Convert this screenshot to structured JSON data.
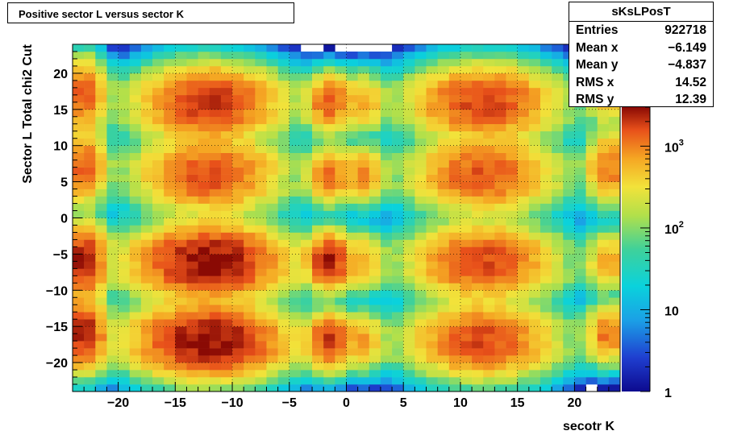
{
  "title": "Positive sector L versus sector K",
  "stats": {
    "name": "sKsLPosT",
    "rows": [
      {
        "label": "Entries",
        "value": "922718"
      },
      {
        "label": "Mean x",
        "value": "−6.149"
      },
      {
        "label": "Mean y",
        "value": "−4.837"
      },
      {
        "label": "RMS x",
        "value": "14.52"
      },
      {
        "label": "RMS y",
        "value": "12.39"
      }
    ]
  },
  "chart_data": {
    "type": "heatmap",
    "title": "Positive sector L versus sector K",
    "xlabel": "secotr K",
    "ylabel": "Sector L  Total chi2 Cut",
    "xlim": [
      -24,
      24
    ],
    "ylim": [
      -24,
      24
    ],
    "x_ticks": [
      -20,
      -15,
      -10,
      -5,
      0,
      5,
      10,
      15,
      20
    ],
    "x_tick_labels": [
      "−20",
      "−15",
      "−10",
      "−5",
      "0",
      "5",
      "10",
      "15",
      "20"
    ],
    "y_ticks": [
      -20,
      -15,
      -10,
      -5,
      0,
      5,
      10,
      15,
      20
    ],
    "y_tick_labels": [
      "−20",
      "−15",
      "−10",
      "−5",
      "0",
      "5",
      "10",
      "15",
      "20"
    ],
    "grid": true,
    "colorbar": {
      "scale": "log",
      "min": 1,
      "max": 3000,
      "ticks": [
        {
          "value": 1,
          "label": "1",
          "exp": ""
        },
        {
          "value": 10,
          "label": "10",
          "exp": ""
        },
        {
          "value": 100,
          "label": "10",
          "exp": "2"
        },
        {
          "value": 1000,
          "label": "10",
          "exp": "3"
        }
      ]
    },
    "peak_count": 3000,
    "clusters": [
      {
        "x": -12,
        "y": 16,
        "sx": 3.2,
        "sy": 2.6,
        "amp": 2000,
        "hollow_center": true
      },
      {
        "x": 12,
        "y": 16,
        "sx": 3.2,
        "sy": 2.6,
        "amp": 1800,
        "hollow_center": true
      },
      {
        "x": -12,
        "y": 6,
        "sx": 3.2,
        "sy": 2.6,
        "amp": 1600,
        "hollow_center": true
      },
      {
        "x": 12,
        "y": 6,
        "sx": 3.2,
        "sy": 2.6,
        "amp": 1500,
        "hollow_center": true
      },
      {
        "x": -12,
        "y": -6,
        "sx": 3.4,
        "sy": 2.6,
        "amp": 3000,
        "hollow_center": true
      },
      {
        "x": 12,
        "y": -6,
        "sx": 3.2,
        "sy": 2.6,
        "amp": 1700,
        "hollow_center": true
      },
      {
        "x": -12,
        "y": -17,
        "sx": 3.4,
        "sy": 2.6,
        "amp": 3000,
        "hollow_center": true
      },
      {
        "x": 12,
        "y": -17,
        "sx": 3.2,
        "sy": 2.6,
        "amp": 1700,
        "hollow_center": true
      },
      {
        "x": -1.5,
        "y": 16,
        "sx": 1.0,
        "sy": 2.0,
        "amp": 1500,
        "hollow_center": false
      },
      {
        "x": 1.5,
        "y": 16,
        "sx": 1.0,
        "sy": 2.0,
        "amp": 700,
        "hollow_center": false
      },
      {
        "x": -1.5,
        "y": 6,
        "sx": 1.0,
        "sy": 2.0,
        "amp": 1200,
        "hollow_center": false
      },
      {
        "x": 1.5,
        "y": 6,
        "sx": 1.0,
        "sy": 2.0,
        "amp": 900,
        "hollow_center": false
      },
      {
        "x": -1.5,
        "y": -6,
        "sx": 1.0,
        "sy": 2.0,
        "amp": 2500,
        "hollow_center": false
      },
      {
        "x": 1.5,
        "y": -6,
        "sx": 1.0,
        "sy": 2.0,
        "amp": 600,
        "hollow_center": false
      },
      {
        "x": -1.5,
        "y": -17,
        "sx": 1.0,
        "sy": 2.0,
        "amp": 2000,
        "hollow_center": false
      },
      {
        "x": 1.5,
        "y": -17,
        "sx": 1.0,
        "sy": 2.0,
        "amp": 700,
        "hollow_center": false
      },
      {
        "x": -23,
        "y": 17,
        "sx": 1.0,
        "sy": 2.5,
        "amp": 1500,
        "hollow_center": false
      },
      {
        "x": 23,
        "y": 17,
        "sx": 1.0,
        "sy": 2.0,
        "amp": 700,
        "hollow_center": false
      },
      {
        "x": -23,
        "y": 7,
        "sx": 1.0,
        "sy": 2.5,
        "amp": 1500,
        "hollow_center": false
      },
      {
        "x": 23,
        "y": 7,
        "sx": 1.0,
        "sy": 2.5,
        "amp": 1200,
        "hollow_center": false
      },
      {
        "x": -23,
        "y": -6,
        "sx": 1.0,
        "sy": 2.5,
        "amp": 2800,
        "hollow_center": false
      },
      {
        "x": 23,
        "y": -6,
        "sx": 1.0,
        "sy": 2.0,
        "amp": 700,
        "hollow_center": false
      },
      {
        "x": -23,
        "y": -16,
        "sx": 1.0,
        "sy": 2.5,
        "amp": 2500,
        "hollow_center": false
      },
      {
        "x": 23,
        "y": -16,
        "sx": 1.0,
        "sy": 2.0,
        "amp": 1200,
        "hollow_center": false
      }
    ]
  }
}
